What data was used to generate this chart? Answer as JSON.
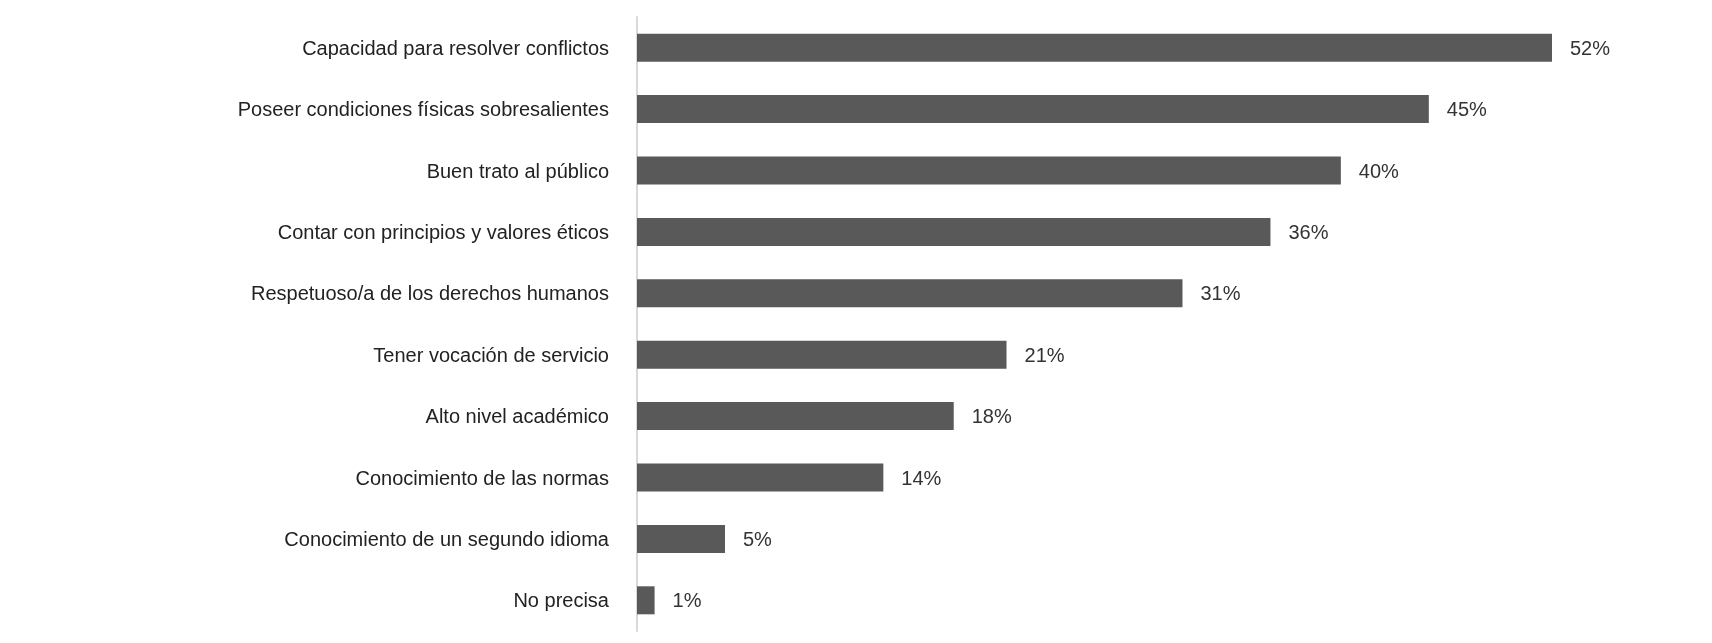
{
  "chart_data": {
    "type": "bar",
    "orientation": "horizontal",
    "categories": [
      "Capacidad para resolver conflictos",
      "Poseer condiciones físicas sobresalientes",
      "Buen trato al público",
      "Contar con principios y valores éticos",
      "Respetuoso/a de los derechos humanos",
      "Tener vocación de servicio",
      "Alto nivel académico",
      "Conocimiento de las normas",
      "Conocimiento de un segundo idioma",
      "No precisa"
    ],
    "values": [
      52,
      45,
      40,
      36,
      31,
      21,
      18,
      14,
      5,
      1
    ],
    "value_labels": [
      "52%",
      "45%",
      "40%",
      "36%",
      "31%",
      "21%",
      "18%",
      "14%",
      "5%",
      "1%"
    ],
    "color": "#595959",
    "tick_labels": "y"
  }
}
